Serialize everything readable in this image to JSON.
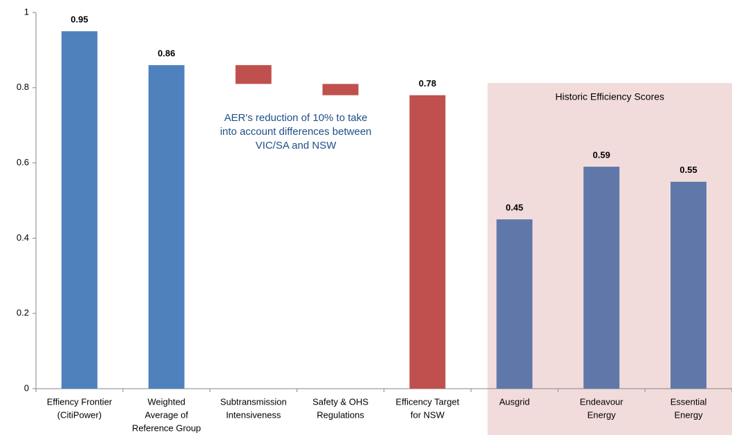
{
  "chart_data": {
    "type": "waterfall",
    "categories": [
      [
        "Effiency Frontier",
        "(CitiPower)"
      ],
      [
        "Weighted",
        "Average of",
        "Reference Group"
      ],
      [
        "Subtransmission",
        "Intensiveness"
      ],
      [
        "Safety & OHS",
        "Regulations"
      ],
      [
        "Efficency Target",
        "for NSW"
      ],
      [
        "Ausgrid"
      ],
      [
        "Endeavour",
        "Energy"
      ],
      [
        "Essential",
        "Energy"
      ]
    ],
    "values": [
      0.95,
      0.86,
      -0.05,
      -0.03,
      0.78,
      0.45,
      0.59,
      0.55
    ],
    "bar_kinds": [
      "total",
      "total",
      "delta",
      "delta",
      "total",
      "total",
      "total",
      "total"
    ],
    "colors": [
      "#4f81bd",
      "#4f81bd",
      "#c0504d",
      "#c0504d",
      "#c0504d",
      "#5f78a9",
      "#5f78a9",
      "#5f78a9"
    ],
    "ylim": [
      0,
      1
    ],
    "yticks": [
      0,
      0.2,
      0.4,
      0.6,
      0.8,
      1
    ],
    "grid": false,
    "annotation": [
      "AER's reduction of 10% to take",
      "into account differences between",
      "VIC/SA and NSW"
    ],
    "highlight": {
      "label": "Historic Efficiency Scores",
      "from": 5,
      "to": 7,
      "color": "#f2dcdb"
    }
  }
}
